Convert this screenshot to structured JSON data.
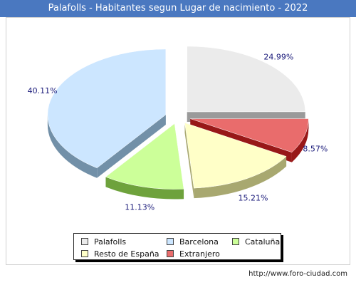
{
  "page": {
    "title": "Palafolls - Habitantes segun Lugar de nacimiento - 2022",
    "footer": "http://www.foro-ciudad.com"
  },
  "colors": {
    "title_bg": "#4a78c0"
  },
  "chart_data": {
    "type": "pie",
    "style": "3d-exploded",
    "title": "Palafolls - Habitantes segun Lugar de nacimiento - 2022",
    "legend_position": "bottom",
    "slices": [
      {
        "label": "Palafolls",
        "percent_label": "24.99%",
        "value": 24.99,
        "color": "#ebebeb",
        "side_color": "#9a9a9a"
      },
      {
        "label": "Extranjero",
        "percent_label": "8.57%",
        "value": 8.57,
        "color": "#e96c6c",
        "side_color": "#981818"
      },
      {
        "label": "Resto de España",
        "percent_label": "15.21%",
        "value": 15.21,
        "color": "#ffffc8",
        "side_color": "#a8a870"
      },
      {
        "label": "Cataluña",
        "percent_label": "11.13%",
        "value": 11.13,
        "color": "#ccff99",
        "side_color": "#6ea23c"
      },
      {
        "label": "Barcelona",
        "percent_label": "40.11%",
        "value": 40.11,
        "color": "#cce6ff",
        "side_color": "#7290a8"
      }
    ],
    "legend": [
      {
        "label": "Palafolls",
        "color": "#ebebeb"
      },
      {
        "label": "Barcelona",
        "color": "#cce6ff"
      },
      {
        "label": "Cataluña",
        "color": "#ccff99"
      },
      {
        "label": "Resto de España",
        "color": "#ffffc8"
      },
      {
        "label": "Extranjero",
        "color": "#e96c6c"
      }
    ]
  }
}
